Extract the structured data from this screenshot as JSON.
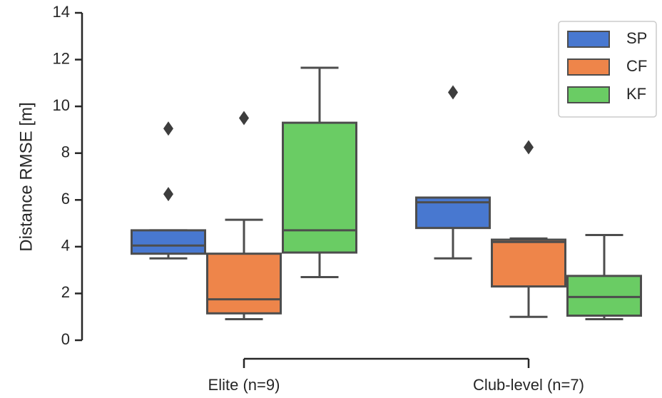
{
  "chart_data": {
    "type": "boxplot",
    "ylabel": "Distance RMSE [m]",
    "ylim": [
      0,
      14
    ],
    "yticks": [
      0,
      2,
      4,
      6,
      8,
      10,
      12,
      14
    ],
    "categories": [
      "Elite (n=9)",
      "Club-level (n=7)"
    ],
    "legend_position": "top-right",
    "grid": false,
    "series": [
      {
        "name": "SP",
        "color": "#4878d0",
        "boxes": [
          {
            "whisker_low": 3.5,
            "q1": 3.7,
            "median": 4.05,
            "q3": 4.7,
            "whisker_high": 4.7,
            "outliers": [
              6.25,
              9.05
            ]
          },
          {
            "whisker_low": 3.5,
            "q1": 4.8,
            "median": 5.9,
            "q3": 6.1,
            "whisker_high": 6.1,
            "outliers": [
              10.6
            ]
          }
        ]
      },
      {
        "name": "CF",
        "color": "#ee854a",
        "boxes": [
          {
            "whisker_low": 0.9,
            "q1": 1.15,
            "median": 1.75,
            "q3": 3.7,
            "whisker_high": 5.15,
            "outliers": [
              9.5
            ]
          },
          {
            "whisker_low": 1.0,
            "q1": 2.3,
            "median": 4.2,
            "q3": 4.3,
            "whisker_high": 4.35,
            "outliers": [
              8.25
            ]
          }
        ]
      },
      {
        "name": "KF",
        "color": "#6acc64",
        "boxes": [
          {
            "whisker_low": 2.7,
            "q1": 3.75,
            "median": 4.7,
            "q3": 9.3,
            "whisker_high": 11.65,
            "outliers": []
          },
          {
            "whisker_low": 0.9,
            "q1": 1.05,
            "median": 1.85,
            "q3": 2.75,
            "whisker_high": 4.5,
            "outliers": []
          }
        ]
      }
    ]
  }
}
